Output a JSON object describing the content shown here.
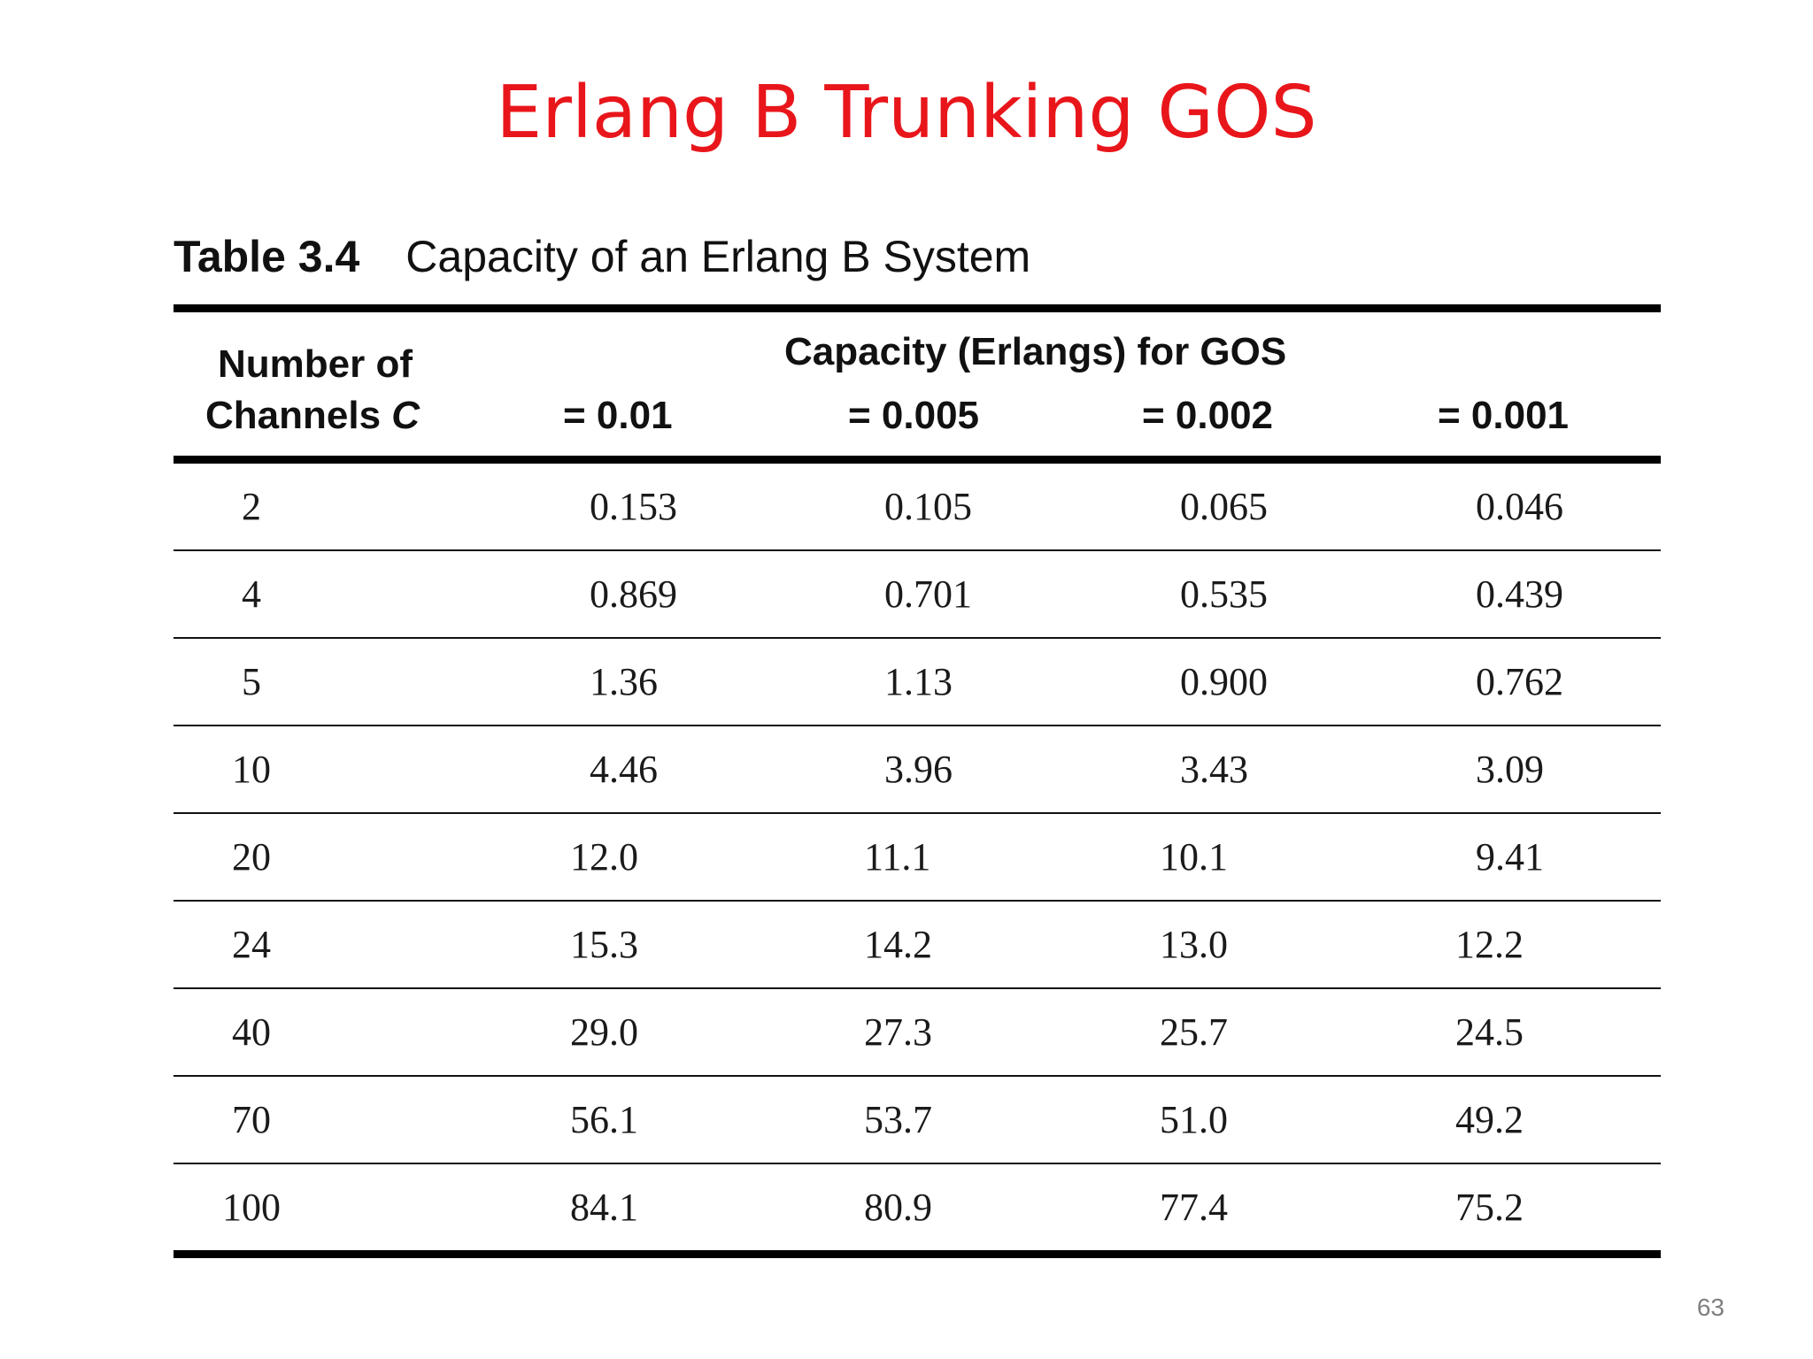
{
  "slide": {
    "title": "Erlang B Trunking GOS",
    "page_number": "63"
  },
  "table": {
    "caption_number": "Table 3.4",
    "caption_text": "Capacity of an Erlang B System",
    "header": {
      "channels_line1": "Number of",
      "channels_line2": "Channels ",
      "channels_var": "C",
      "capacity_label": "Capacity (Erlangs) for GOS",
      "gos_columns": [
        "= 0.01",
        "= 0.005",
        "= 0.002",
        "= 0.001"
      ]
    },
    "rows": [
      [
        "2",
        "0.153",
        "0.105",
        "0.065",
        "0.046"
      ],
      [
        "4",
        "0.869",
        "0.701",
        "0.535",
        "0.439"
      ],
      [
        "5",
        "1.36",
        "1.13",
        "0.900",
        "0.762"
      ],
      [
        "10",
        "4.46",
        "3.96",
        "3.43",
        "3.09"
      ],
      [
        "20",
        "12.0",
        "11.1",
        "10.1",
        "9.41"
      ],
      [
        "24",
        "15.3",
        "14.2",
        "13.0",
        "12.2"
      ],
      [
        "40",
        "29.0",
        "27.3",
        "25.7",
        "24.5"
      ],
      [
        "70",
        "56.1",
        "53.7",
        "51.0",
        "49.2"
      ],
      [
        "100",
        "84.1",
        "80.9",
        "77.4",
        "75.2"
      ]
    ]
  }
}
